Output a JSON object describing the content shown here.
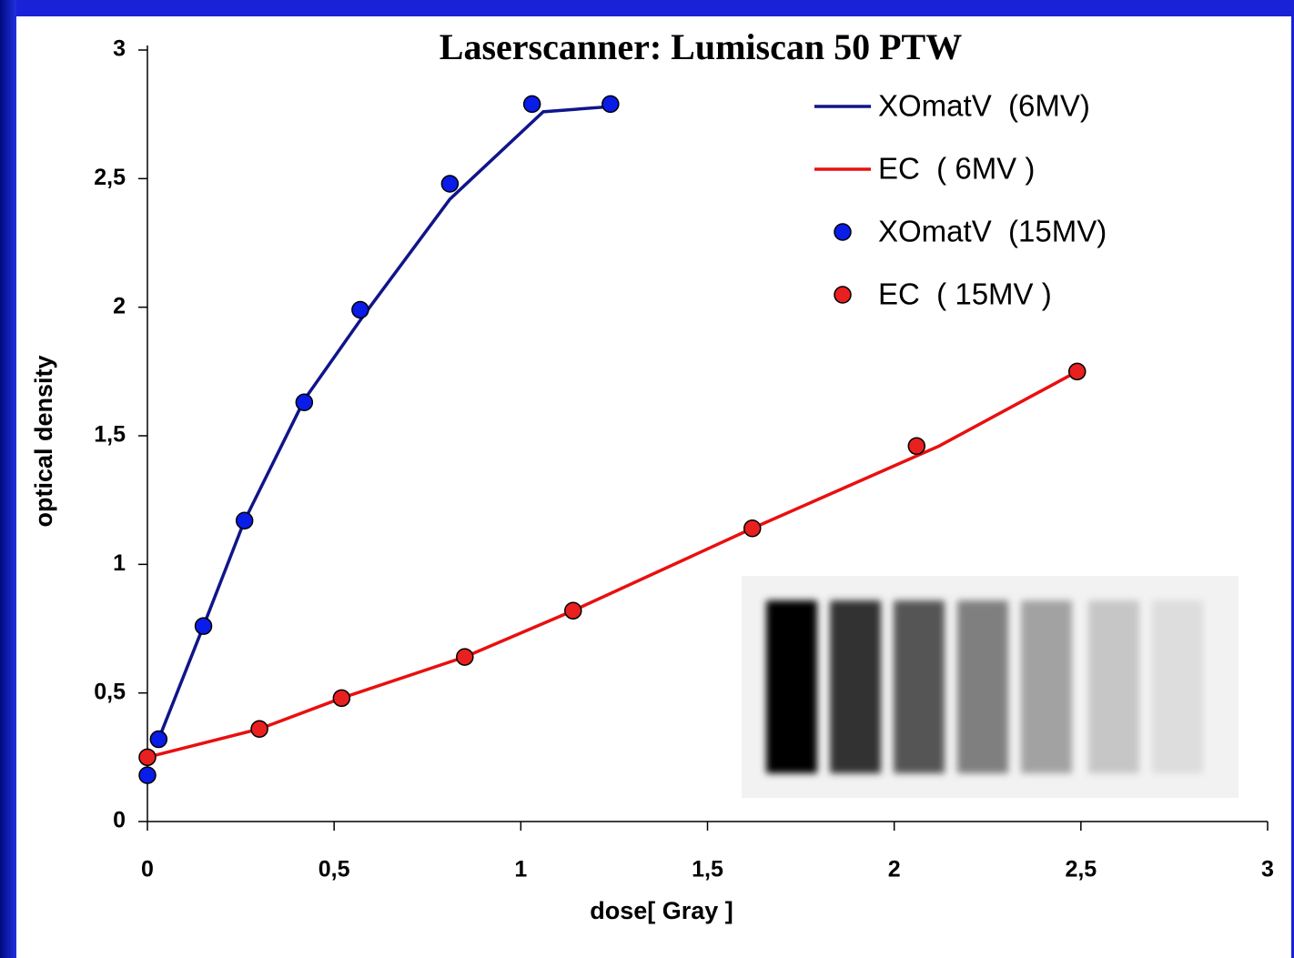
{
  "chart_data": {
    "type": "line",
    "title": "Laserscanner: Lumiscan 50 PTW",
    "x_label": "dose[ Gray ]",
    "y_label": "optical density",
    "xlim": [
      0,
      3
    ],
    "ylim": [
      0,
      3
    ],
    "xticks": [
      0,
      {
        "value": 0.5,
        "label": "0,5"
      },
      1,
      {
        "value": 1.5,
        "label": "1,5"
      },
      2,
      {
        "value": 2.5,
        "label": "2,5"
      },
      3
    ],
    "yticks": [
      0,
      {
        "value": 0.5,
        "label": "0,5"
      },
      1,
      {
        "value": 1.5,
        "label": "1,5"
      },
      2,
      {
        "value": 2.5,
        "label": "2,5"
      },
      3
    ],
    "legend": "upper right",
    "series": [
      {
        "name": "XOmatV  (6MV)",
        "color": "#10158a",
        "style": "line",
        "x": [
          0.03,
          0.15,
          0.26,
          0.42,
          0.58,
          0.81,
          1.06,
          1.24
        ],
        "values": [
          0.32,
          0.76,
          1.17,
          1.64,
          1.97,
          2.42,
          2.76,
          2.78
        ]
      },
      {
        "name": "EC  ( 6MV )",
        "color": "#e81010",
        "style": "line",
        "x": [
          0,
          0.3,
          0.52,
          0.85,
          1.14,
          1.62,
          2.12,
          2.49
        ],
        "values": [
          0.25,
          0.36,
          0.48,
          0.64,
          0.82,
          1.14,
          1.46,
          1.75
        ]
      },
      {
        "name": "XOmatV  (15MV)",
        "color": "#0a1ce8",
        "style": "markers",
        "x": [
          0,
          0.03,
          0.15,
          0.26,
          0.42,
          0.57,
          0.81,
          1.03,
          1.24
        ],
        "values": [
          0.18,
          0.32,
          0.76,
          1.17,
          1.63,
          1.99,
          2.48,
          2.79,
          2.79
        ]
      },
      {
        "name": "EC  ( 15MV )",
        "color": "#e82020",
        "style": "markers",
        "x": [
          0,
          0.3,
          0.52,
          0.85,
          1.14,
          1.62,
          2.06,
          2.49
        ],
        "values": [
          0.25,
          0.36,
          0.48,
          0.64,
          0.82,
          1.14,
          1.46,
          1.75
        ]
      }
    ]
  }
}
